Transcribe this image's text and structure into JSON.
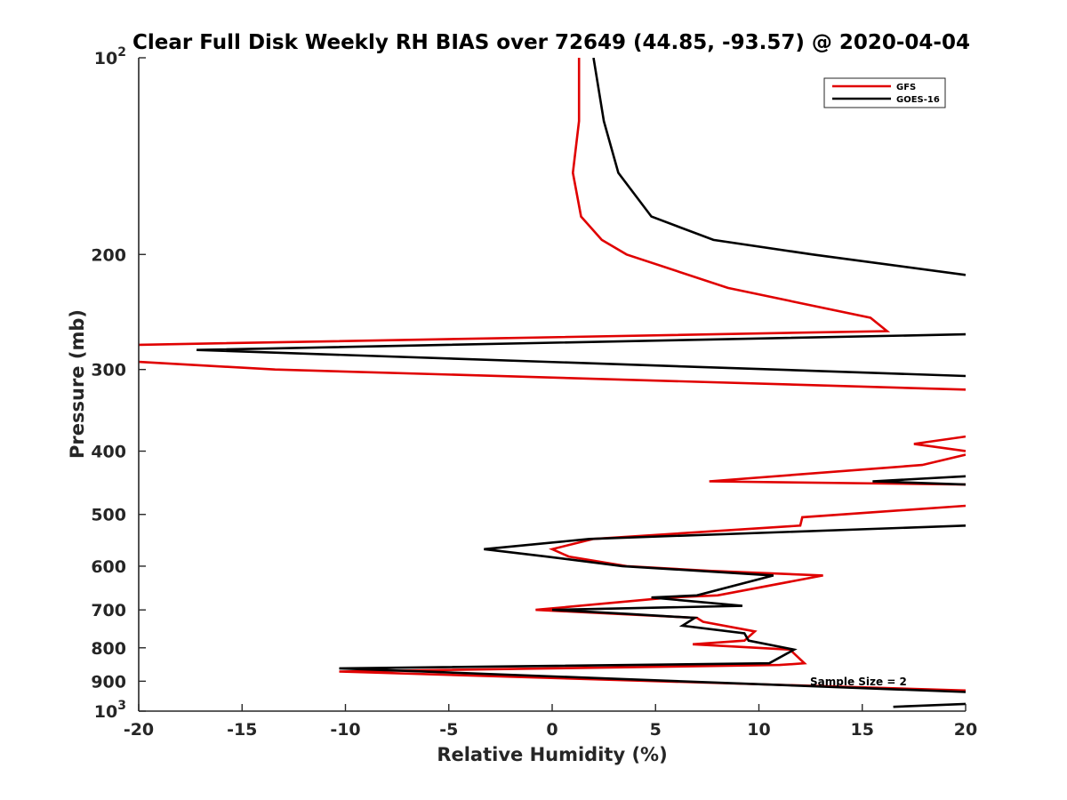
{
  "chart_data": {
    "type": "line",
    "title": "Clear Full Disk Weekly RH BIAS over 72649 (44.85, -93.57) @ 2020-04-04",
    "xlabel": "Relative Humidity (%)",
    "ylabel": "Pressure (mb)",
    "xlim": [
      -20,
      20
    ],
    "ylim": [
      100,
      1000
    ],
    "y_scale": "log",
    "y_reversed": true,
    "grid": false,
    "legend_position": "top-right",
    "x_ticks": [
      "-20",
      "-15",
      "-10",
      "-5",
      "0",
      "5",
      "10",
      "15",
      "20"
    ],
    "y_ticks": [
      {
        "base": "10",
        "exp": "2"
      },
      {
        "base": "200",
        "exp": ""
      },
      {
        "base": "300",
        "exp": ""
      },
      {
        "base": "400",
        "exp": ""
      },
      {
        "base": "500",
        "exp": ""
      },
      {
        "base": "600",
        "exp": ""
      },
      {
        "base": "700",
        "exp": ""
      },
      {
        "base": "800",
        "exp": ""
      },
      {
        "base": "900",
        "exp": ""
      },
      {
        "base": "10",
        "exp": "3"
      }
    ],
    "annotation": "Sample Size = 2",
    "series": [
      {
        "name": "GFS",
        "color": "#e00000",
        "segments": [
          [
            [
              1.3,
              100
            ],
            [
              1.3,
              125
            ],
            [
              1.0,
              150
            ],
            [
              1.4,
              175
            ],
            [
              2.4,
              190
            ],
            [
              3.6,
              200
            ],
            [
              8.5,
              225
            ],
            [
              15.4,
              250
            ],
            [
              16.2,
              262
            ],
            [
              -20.0,
              275
            ]
          ],
          [
            [
              -20.0,
              292
            ],
            [
              -13.4,
              300
            ],
            [
              20.0,
              322
            ]
          ],
          [
            [
              20.0,
              380
            ],
            [
              17.5,
              390
            ],
            [
              20.0,
              400
            ]
          ],
          [
            [
              20.0,
              405
            ],
            [
              17.9,
              420
            ],
            [
              7.6,
              445
            ],
            [
              20.0,
              450
            ]
          ],
          [
            [
              20.0,
              485
            ],
            [
              12.1,
              505
            ],
            [
              12.0,
              520
            ],
            [
              2.0,
              545
            ],
            [
              0.0,
              565
            ],
            [
              0.8,
              580
            ],
            [
              3.6,
              600
            ],
            [
              7.6,
              610
            ],
            [
              13.1,
              620
            ],
            [
              8.0,
              665
            ],
            [
              5.7,
              670
            ],
            [
              -0.8,
              700
            ],
            [
              3.2,
              710
            ],
            [
              7.0,
              720
            ],
            [
              7.3,
              730
            ],
            [
              9.8,
              755
            ],
            [
              9.3,
              780
            ],
            [
              6.8,
              790
            ],
            [
              11.5,
              805
            ],
            [
              12.2,
              845
            ],
            [
              11.0,
              850
            ],
            [
              -10.3,
              870
            ],
            [
              20.0,
              930
            ]
          ]
        ]
      },
      {
        "name": "GOES-16",
        "color": "#000000",
        "segments": [
          [
            [
              2.0,
              100
            ],
            [
              2.5,
              125
            ],
            [
              3.2,
              150
            ],
            [
              4.8,
              175
            ],
            [
              7.8,
              190
            ],
            [
              12.6,
              200
            ],
            [
              20.0,
              215
            ]
          ],
          [
            [
              20.0,
              265
            ],
            [
              -17.2,
              280
            ],
            [
              20.0,
              307
            ]
          ],
          [
            [
              20.0,
              437
            ],
            [
              15.5,
              445
            ],
            [
              20.0,
              450
            ]
          ],
          [
            [
              20.0,
              520
            ],
            [
              1.8,
              545
            ],
            [
              -3.3,
              565
            ],
            [
              -0.3,
              580
            ],
            [
              3.4,
              600
            ],
            [
              10.7,
              620
            ],
            [
              7.0,
              665
            ],
            [
              4.8,
              670
            ],
            [
              9.2,
              690
            ],
            [
              0.0,
              700
            ],
            [
              3.7,
              710
            ],
            [
              6.9,
              720
            ],
            [
              6.3,
              740
            ],
            [
              9.3,
              760
            ],
            [
              9.5,
              780
            ],
            [
              11.7,
              805
            ],
            [
              10.5,
              845
            ],
            [
              -10.3,
              860
            ],
            [
              20.0,
              935
            ]
          ],
          [
            [
              16.5,
              985
            ],
            [
              20.0,
              975
            ]
          ]
        ]
      }
    ]
  }
}
